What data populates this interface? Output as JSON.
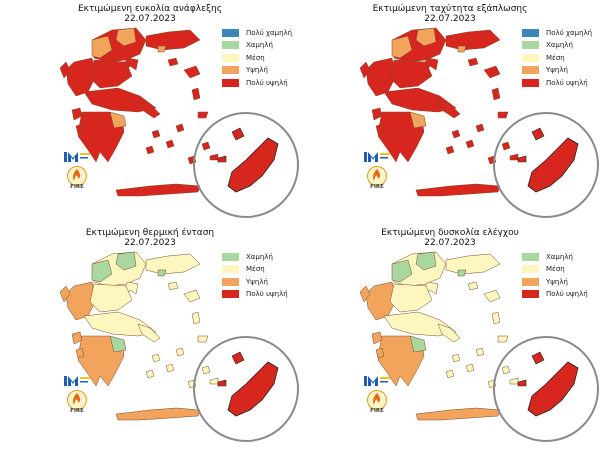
{
  "colors": {
    "very_low": "#3a87b8",
    "low": "#a8d8a0",
    "medium": "#fdf7bf",
    "high": "#f2a35c",
    "very_high": "#d7261e",
    "border": "#7a4a2a",
    "circle": "#8a8a8a"
  },
  "panels": [
    {
      "title": "Εκτιμώμενη ευκολία ανάφλεξης",
      "date": "22.07.2023",
      "legend": [
        {
          "label": "Πολύ χαμηλή",
          "color": "#3a87b8"
        },
        {
          "label": "Χαμηλή",
          "color": "#a8d8a0"
        },
        {
          "label": "Μέση",
          "color": "#fdf7bf"
        },
        {
          "label": "Υψηλή",
          "color": "#f2a35c"
        },
        {
          "label": "Πολύ υψηλή",
          "color": "#d7261e"
        }
      ],
      "map": {
        "north": "#d7261e",
        "accent": "#f2a35c",
        "thrace": "#d7261e",
        "south": "#d7261e",
        "islands": "#d7261e",
        "crete": "#d7261e",
        "rhodes": "#d7261e"
      },
      "logo": {
        "text": "FIRE"
      }
    },
    {
      "title": "Εκτιμώμενη ταχύτητα εξάπλωσης",
      "date": "22.07.2023",
      "legend": [
        {
          "label": "Πολύ χαμηλή",
          "color": "#3a87b8"
        },
        {
          "label": "Χαμηλή",
          "color": "#a8d8a0"
        },
        {
          "label": "Μέση",
          "color": "#fdf7bf"
        },
        {
          "label": "Υψηλή",
          "color": "#f2a35c"
        },
        {
          "label": "Πολύ υψηλή",
          "color": "#d7261e"
        }
      ],
      "map": {
        "north": "#d7261e",
        "accent": "#f2a35c",
        "thrace": "#d7261e",
        "south": "#d7261e",
        "islands": "#d7261e",
        "crete": "#d7261e",
        "rhodes": "#d7261e"
      },
      "logo": {
        "text": "FIRE"
      }
    },
    {
      "title": "Εκτιμώμενη θερμική ένταση",
      "date": "22.07.2023",
      "legend": [
        {
          "label": "Χαμηλή",
          "color": "#a8d8a0"
        },
        {
          "label": "Μέση",
          "color": "#fdf7bf"
        },
        {
          "label": "Υψηλή",
          "color": "#f2a35c"
        },
        {
          "label": "Πολύ υψηλή",
          "color": "#d7261e"
        }
      ],
      "map": {
        "north": "#fdf7bf",
        "accent": "#a8d8a0",
        "thrace": "#fdf7bf",
        "south": "#f2a35c",
        "islands": "#fdf7bf",
        "crete": "#f2a35c",
        "rhodes": "#d7261e"
      },
      "logo": {
        "text": "FIRE"
      }
    },
    {
      "title": "Εκτιμώμενη δυσκολία ελέγχου",
      "date": "22.07.2023",
      "legend": [
        {
          "label": "Χαμηλή",
          "color": "#a8d8a0"
        },
        {
          "label": "Μέση",
          "color": "#fdf7bf"
        },
        {
          "label": "Υψηλή",
          "color": "#f2a35c"
        },
        {
          "label": "Πολύ υψηλή",
          "color": "#d7261e"
        }
      ],
      "map": {
        "north": "#fdf7bf",
        "accent": "#a8d8a0",
        "thrace": "#fdf7bf",
        "south": "#f2a35c",
        "islands": "#fdf7bf",
        "crete": "#f2a35c",
        "rhodes": "#d7261e"
      },
      "logo": {
        "text": "FIRE"
      }
    }
  ]
}
